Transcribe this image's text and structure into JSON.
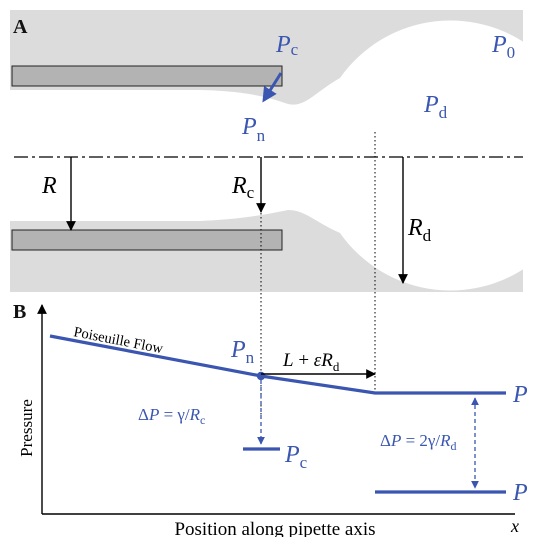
{
  "panel_a": {
    "label": "A",
    "pc": {
      "base": "P",
      "sub": "c"
    },
    "p0": {
      "base": "P",
      "sub": "0"
    },
    "pd": {
      "base": "P",
      "sub": "d"
    },
    "pn": {
      "base": "P",
      "sub": "n"
    },
    "r": "R",
    "rc": {
      "base": "R",
      "sub": "c"
    },
    "rd": {
      "base": "R",
      "sub": "d"
    }
  },
  "panel_b": {
    "label": "B",
    "flow_label": "Poiseuille Flow",
    "pn": {
      "base": "P",
      "sub": "n"
    },
    "length_label": {
      "L": "L",
      "mid": " + ",
      "eps": "ε",
      "R": "R",
      "sub": "d"
    },
    "dp_c": {
      "delta": "Δ",
      "P": "P",
      "eq": " = γ/",
      "R": "R",
      "sub": "c"
    },
    "pc": {
      "base": "P",
      "sub": "c"
    },
    "dp_d": {
      "delta": "Δ",
      "P": "P",
      "eq": " = 2γ/",
      "R": "R",
      "sub": "d"
    },
    "p_right_top": "P",
    "p_right_bottom": "P",
    "y_axis": "Pressure",
    "x_axis": "Position along pipette axis",
    "x_var": "x"
  },
  "colors": {
    "accent": "#3a56b0",
    "fluid": "#dcdcdc",
    "pipette": "#b3b3b3"
  }
}
